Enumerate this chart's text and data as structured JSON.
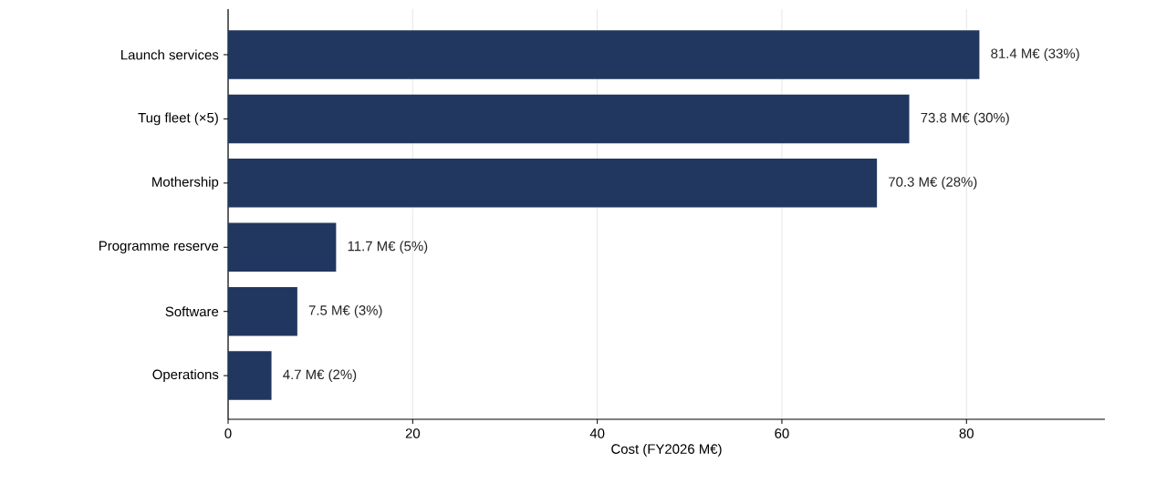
{
  "chart_data": {
    "type": "bar",
    "orientation": "horizontal",
    "xlabel": "Cost (FY2026 M€)",
    "categories": [
      "Launch services",
      "Tug fleet (×5)",
      "Mothership",
      "Programme reserve",
      "Software",
      "Operations"
    ],
    "values": [
      81.4,
      73.8,
      70.3,
      11.7,
      7.5,
      4.7
    ],
    "value_labels": [
      "81.4 M€  (33%)",
      "73.8 M€  (30%)",
      "70.3 M€  (28%)",
      "11.7 M€  (5%)",
      "7.5 M€  (3%)",
      "4.7 M€  (2%)"
    ],
    "color": "#21375f",
    "xlim": [
      0,
      95
    ],
    "xticks": [
      0,
      20,
      40,
      60,
      80
    ],
    "grid": "x"
  }
}
